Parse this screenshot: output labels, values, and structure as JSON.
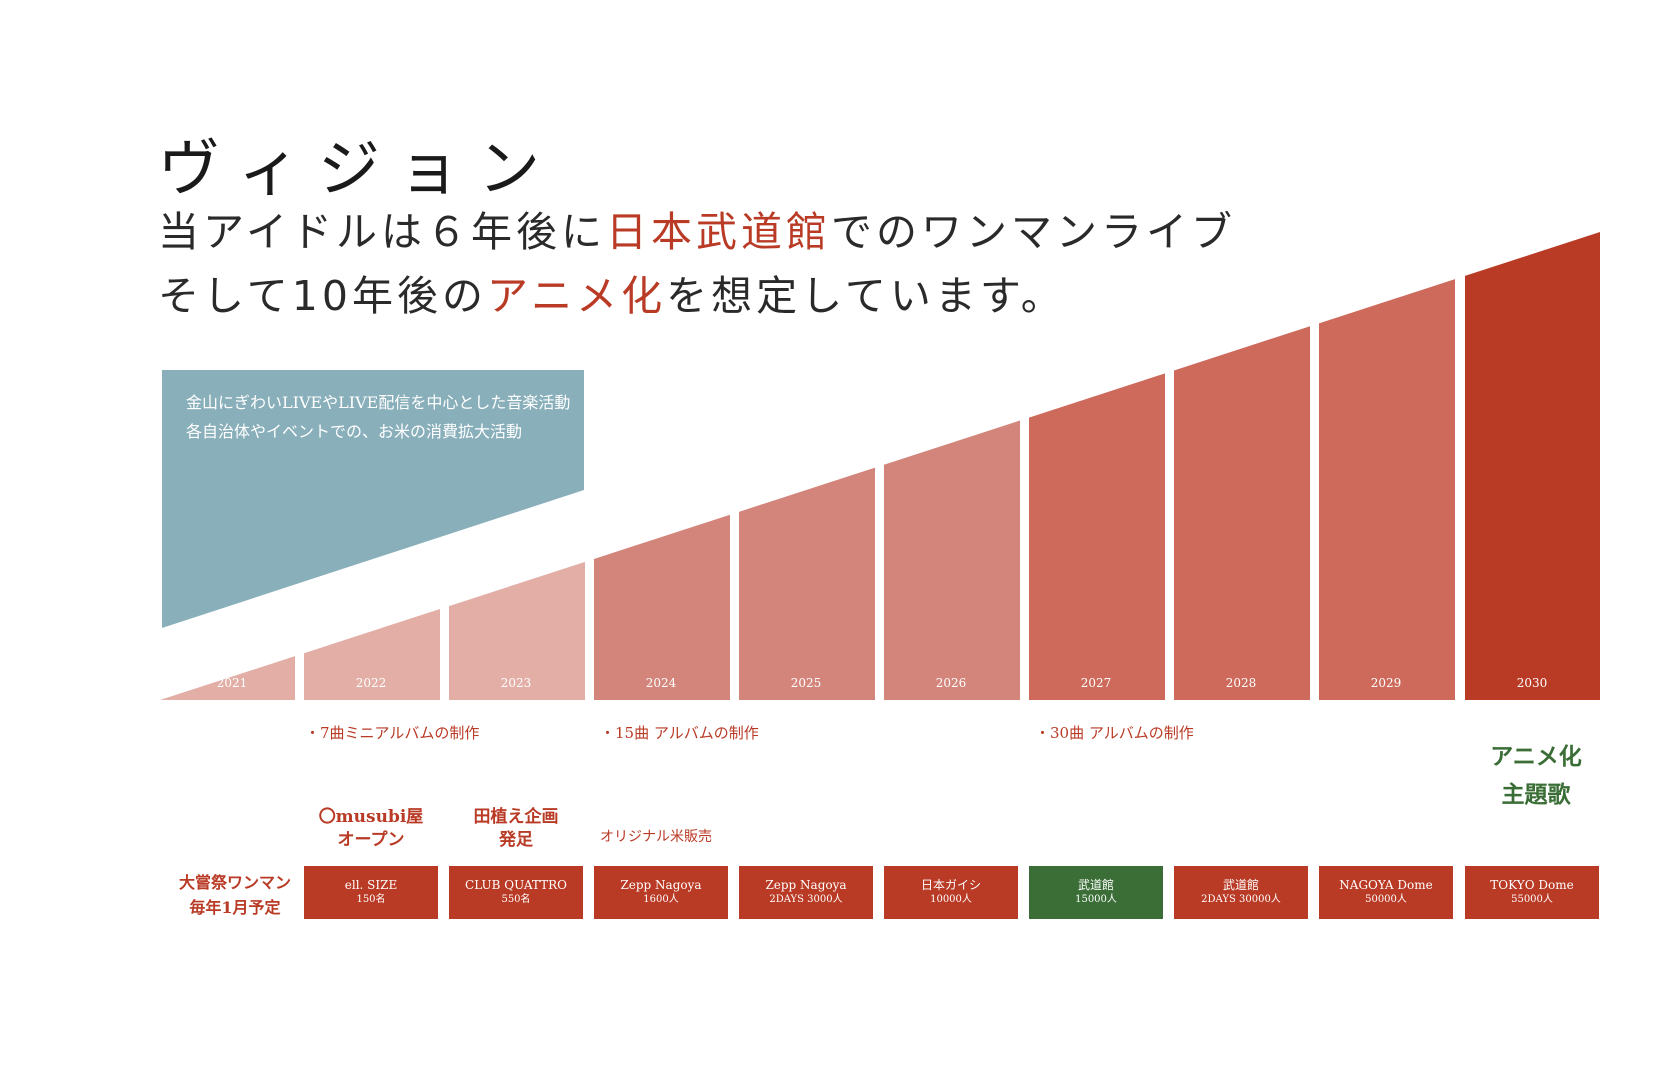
{
  "title": "ヴィジョン",
  "headline": {
    "line1_pre": "当アイドルは６年後に",
    "line1_hl": "日本武道館",
    "line1_post": "でのワンマンライブ",
    "line2_pre": "そして10年後の",
    "line2_hl": "アニメ化",
    "line2_post": "を想定しています。"
  },
  "activities": {
    "line1": "金山にぎわいLIVEやLIVE配信を中心とした音楽活動",
    "line2": "各自治体やイベントでの、お米の消費拡大活動"
  },
  "colors": {
    "accent_red": "#b93a25",
    "accent_green": "#3a6e36",
    "activity_blue": "#89afbb"
  },
  "chart_data": {
    "type": "bar",
    "categories": [
      "2021",
      "2022",
      "2023",
      "2024",
      "2025",
      "2026",
      "2027",
      "2028",
      "2029",
      "2030"
    ],
    "fill_colors": [
      "#e2aea6",
      "#e2aea6",
      "#e2aea6",
      "#d3857b",
      "#d3857b",
      "#d3857b",
      "#cd6a5c",
      "#cd6a5c",
      "#cd6a5c",
      "#b93a25"
    ]
  },
  "albums": [
    "・7曲ミニアルバムの制作",
    "・15曲 アルバムの制作",
    "・30曲 アルバムの制作"
  ],
  "anime": {
    "line1": "アニメ化",
    "line2": "主題歌"
  },
  "events": {
    "omusubi_line1": "〇musubi屋",
    "omusubi_line2": "オープン",
    "taue_line1": "田植え企画",
    "taue_line2": "発足",
    "rice_sale": "オリジナル米販売"
  },
  "oneman": {
    "line1": "大嘗祭ワンマン",
    "line2": "毎年1月予定"
  },
  "venues": [
    {
      "name": "ell. SIZE",
      "capacity": "150名"
    },
    {
      "name": "CLUB QUATTRO",
      "capacity": "550名"
    },
    {
      "name": "Zepp Nagoya",
      "capacity": "1600人"
    },
    {
      "name": "Zepp Nagoya",
      "capacity": "2DAYS 3000人"
    },
    {
      "name": "日本ガイシ",
      "capacity": "10000人"
    },
    {
      "name": "武道館",
      "capacity": "15000人"
    },
    {
      "name": "武道館",
      "capacity": "2DAYS 30000人"
    },
    {
      "name": "NAGOYA Dome",
      "capacity": "50000人"
    },
    {
      "name": "TOKYO Dome",
      "capacity": "55000人"
    }
  ]
}
